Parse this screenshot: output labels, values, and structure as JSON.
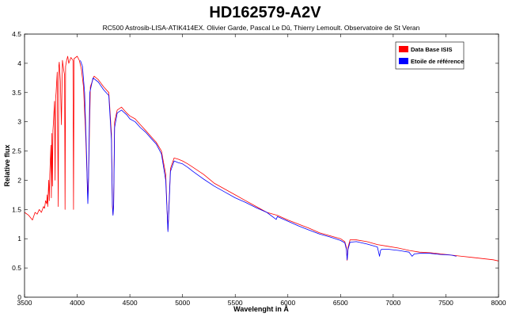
{
  "chart_data": {
    "type": "line",
    "title": "HD162579-A2V",
    "subtitle": "RC500 Astrosib-LISA-ATIK414EX. Olivier Garde, Pascal Le Dû, Thierry Lemoult. Observatoire de St Veran",
    "xlabel": "Wavelenght in Å",
    "ylabel": "Relative flux",
    "xlim": [
      3500,
      8000
    ],
    "ylim": [
      0,
      4.5
    ],
    "xticks": [
      3500,
      4000,
      4500,
      5000,
      5500,
      6000,
      6500,
      7000,
      7500,
      8000
    ],
    "yticks": [
      0,
      0.5,
      1,
      1.5,
      2,
      2.5,
      3,
      3.5,
      4,
      4.5
    ],
    "grid": false,
    "legend_position": "top-right",
    "series": [
      {
        "name": "Data Base ISIS",
        "color": "#ff0000",
        "x": [
          3500,
          3540,
          3575,
          3600,
          3620,
          3640,
          3660,
          3680,
          3690,
          3700,
          3710,
          3715,
          3720,
          3730,
          3735,
          3740,
          3750,
          3755,
          3760,
          3765,
          3770,
          3775,
          3785,
          3790,
          3795,
          3800,
          3810,
          3820,
          3825,
          3830,
          3840,
          3850,
          3860,
          3870,
          3880,
          3885,
          3890,
          3900,
          3910,
          3920,
          3940,
          3960,
          3965,
          3970,
          3985,
          4000,
          4020,
          4040,
          4060,
          4080,
          4095,
          4101,
          4107,
          4125,
          4160,
          4200,
          4250,
          4300,
          4325,
          4334,
          4340,
          4346,
          4355,
          4380,
          4420,
          4470,
          4500,
          4550,
          4600,
          4650,
          4700,
          4750,
          4800,
          4840,
          4855,
          4861,
          4868,
          4885,
          4920,
          4960,
          5000,
          5050,
          5100,
          5200,
          5300,
          5400,
          5500,
          5600,
          5700,
          5800,
          5900,
          6000,
          6100,
          6200,
          6300,
          6400,
          6500,
          6540,
          6555,
          6563,
          6571,
          6590,
          6650,
          6750,
          6850,
          6950,
          7050,
          7150,
          7250,
          7350,
          7450,
          7550,
          7650,
          7750,
          7850,
          7950,
          8000
        ],
        "y": [
          1.45,
          1.4,
          1.32,
          1.45,
          1.42,
          1.5,
          1.45,
          1.55,
          1.52,
          1.65,
          1.6,
          1.75,
          1.55,
          2.0,
          1.65,
          2.1,
          2.6,
          1.7,
          2.8,
          1.9,
          2.85,
          3.0,
          3.35,
          2.0,
          3.4,
          3.5,
          3.85,
          1.55,
          3.95,
          4.02,
          3.7,
          2.95,
          4.05,
          3.9,
          3.8,
          1.5,
          3.95,
          4.05,
          4.12,
          4.0,
          4.1,
          4.05,
          1.5,
          4.08,
          4.1,
          4.12,
          4.05,
          3.9,
          3.6,
          2.8,
          2.0,
          1.72,
          2.0,
          3.6,
          3.78,
          3.72,
          3.6,
          3.5,
          2.8,
          1.55,
          1.42,
          1.6,
          3.0,
          3.2,
          3.25,
          3.15,
          3.1,
          3.05,
          2.95,
          2.85,
          2.75,
          2.65,
          2.5,
          2.1,
          1.4,
          1.15,
          1.4,
          2.2,
          2.38,
          2.36,
          2.33,
          2.28,
          2.22,
          2.1,
          1.95,
          1.85,
          1.75,
          1.65,
          1.55,
          1.45,
          1.4,
          1.32,
          1.25,
          1.18,
          1.1,
          1.05,
          1.0,
          0.95,
          0.85,
          0.63,
          0.85,
          0.98,
          0.98,
          0.95,
          0.9,
          0.87,
          0.84,
          0.8,
          0.77,
          0.76,
          0.74,
          0.72,
          0.7,
          0.68,
          0.66,
          0.64,
          0.62
        ]
      },
      {
        "name": "Etoile de référence",
        "color": "#0000ff",
        "x": [
          4030,
          4050,
          4070,
          4090,
          4097,
          4101,
          4106,
          4120,
          4150,
          4200,
          4250,
          4300,
          4325,
          4334,
          4340,
          4346,
          4355,
          4380,
          4420,
          4470,
          4500,
          4550,
          4600,
          4650,
          4700,
          4750,
          4800,
          4840,
          4855,
          4861,
          4868,
          4885,
          4920,
          4960,
          5000,
          5050,
          5100,
          5200,
          5300,
          5400,
          5500,
          5600,
          5700,
          5800,
          5890,
          5900,
          6000,
          6100,
          6200,
          6300,
          6400,
          6500,
          6540,
          6555,
          6563,
          6571,
          6590,
          6650,
          6750,
          6850,
          6870,
          6880,
          6890,
          6950,
          7050,
          7150,
          7180,
          7190,
          7200,
          7250,
          7350,
          7450,
          7550,
          7600
        ],
        "y": [
          4.05,
          3.95,
          3.5,
          2.4,
          1.8,
          1.6,
          1.9,
          3.5,
          3.75,
          3.68,
          3.55,
          3.45,
          2.7,
          1.6,
          1.4,
          1.55,
          2.9,
          3.15,
          3.2,
          3.12,
          3.05,
          3.0,
          2.9,
          2.82,
          2.72,
          2.62,
          2.45,
          2.0,
          1.4,
          1.12,
          1.4,
          2.15,
          2.33,
          2.3,
          2.28,
          2.22,
          2.15,
          2.02,
          1.9,
          1.8,
          1.7,
          1.62,
          1.53,
          1.45,
          1.33,
          1.38,
          1.3,
          1.22,
          1.15,
          1.08,
          1.03,
          0.97,
          0.93,
          0.82,
          0.64,
          0.82,
          0.94,
          0.95,
          0.91,
          0.86,
          0.7,
          0.8,
          0.82,
          0.82,
          0.8,
          0.77,
          0.7,
          0.72,
          0.74,
          0.75,
          0.75,
          0.73,
          0.72,
          0.7
        ]
      }
    ]
  }
}
